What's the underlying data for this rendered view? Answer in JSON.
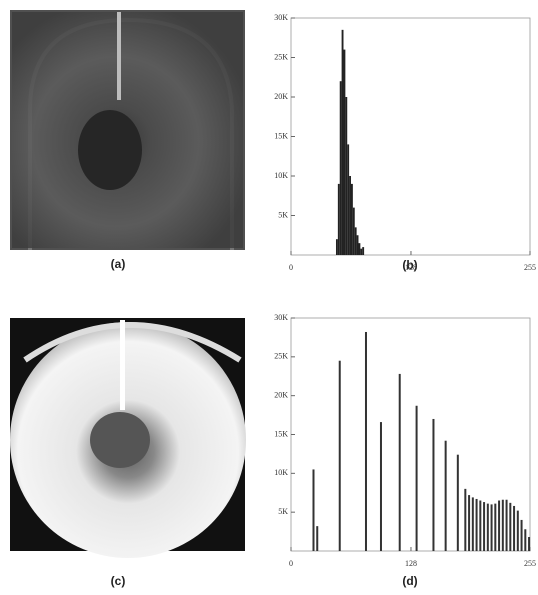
{
  "panel_labels": [
    "(a)",
    "(b)",
    "(c)",
    "(d)"
  ],
  "chart_data": [
    {
      "type": "histogram",
      "bins": [
        48,
        50,
        52,
        54,
        56,
        58,
        60,
        62,
        64,
        66,
        68,
        70,
        72,
        74,
        76,
        78
      ],
      "values": [
        2000,
        9000,
        22000,
        28500,
        26000,
        20000,
        14000,
        10000,
        9000,
        6000,
        3500,
        2500,
        1500,
        800,
        1000
      ],
      "color": "#222222",
      "xlim": [
        0,
        255
      ],
      "xticks": [
        0,
        128,
        255
      ],
      "ylim": [
        0,
        30000
      ],
      "yticks": [
        {
          "value": 5000,
          "label": "5K"
        },
        {
          "value": 10000,
          "label": "10K"
        },
        {
          "value": 15000,
          "label": "15K"
        },
        {
          "value": 20000,
          "label": "20K"
        },
        {
          "value": 25000,
          "label": "25K"
        },
        {
          "value": 30000,
          "label": "30K"
        }
      ]
    },
    {
      "type": "bar",
      "x": [
        24,
        28,
        52,
        80,
        96,
        116,
        134,
        152,
        165,
        178,
        186,
        190,
        194,
        198,
        202,
        206,
        210,
        214,
        218,
        222,
        226,
        230,
        234,
        238,
        242,
        246,
        250,
        254
      ],
      "values": [
        10500,
        3200,
        24500,
        28200,
        16600,
        22800,
        18700,
        17000,
        14200,
        12400,
        8000,
        7200,
        6900,
        6700,
        6500,
        6300,
        6100,
        6000,
        6100,
        6500,
        6600,
        6600,
        6200,
        5800,
        5200,
        4000,
        2800,
        1800
      ],
      "color": "#333333",
      "xlim": [
        0,
        255
      ],
      "xticks": [
        0,
        128,
        255
      ],
      "ylim": [
        0,
        30000
      ],
      "yticks": [
        {
          "value": 5000,
          "label": "5K"
        },
        {
          "value": 10000,
          "label": "10K"
        },
        {
          "value": 15000,
          "label": "15K"
        },
        {
          "value": 20000,
          "label": "20K"
        },
        {
          "value": 25000,
          "label": "25K"
        },
        {
          "value": 30000,
          "label": "30K"
        }
      ]
    }
  ]
}
